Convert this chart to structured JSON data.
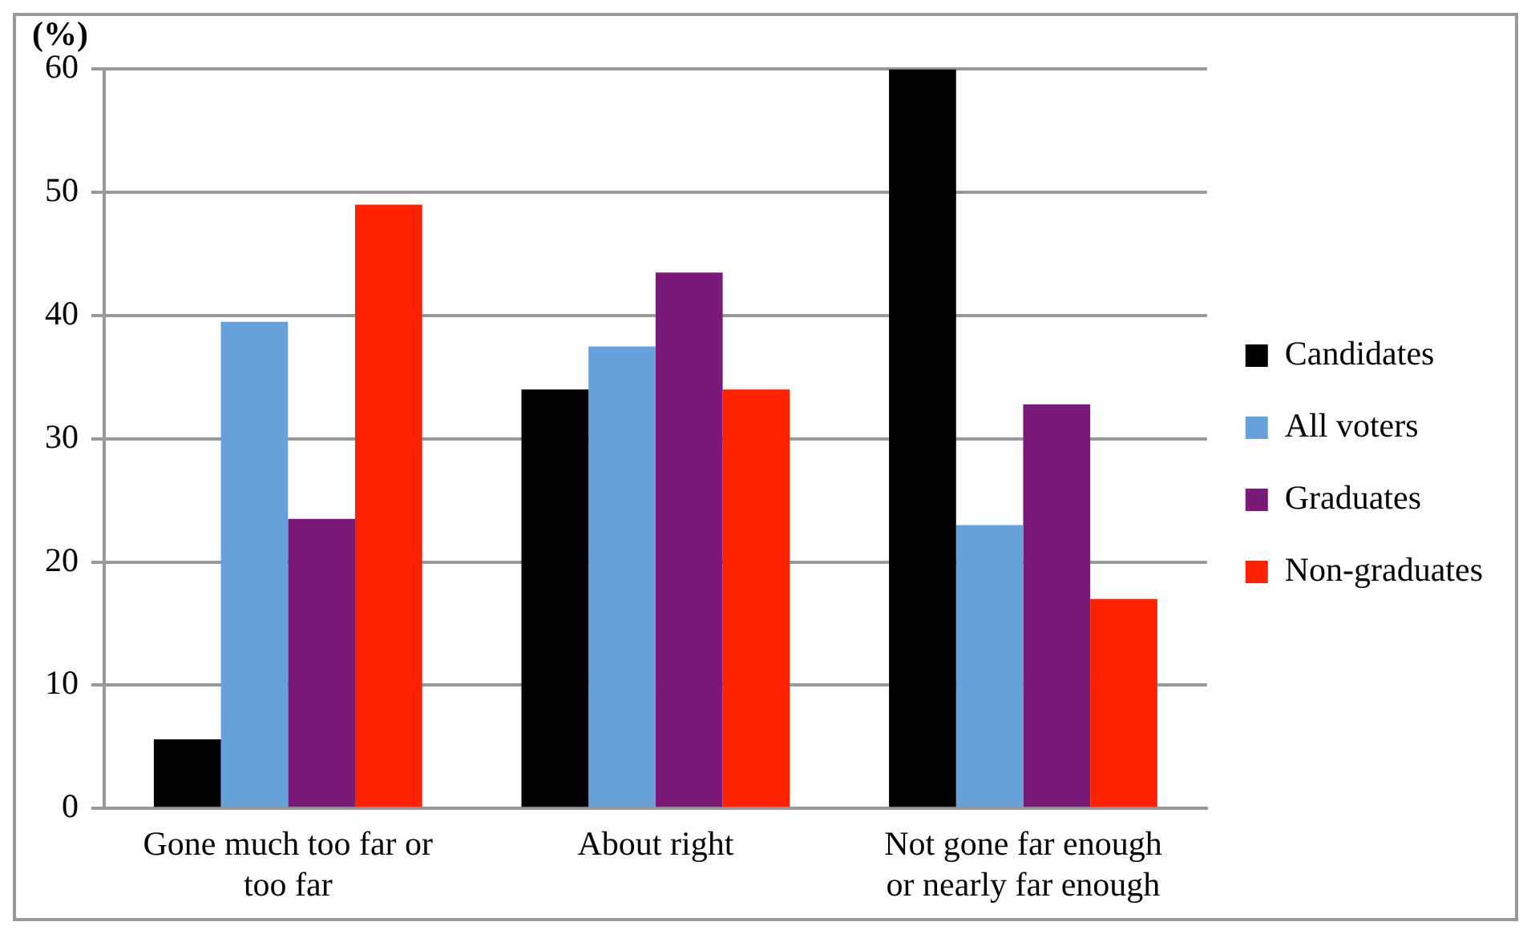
{
  "chart_data": {
    "type": "bar",
    "ylabel": "(%)",
    "categories": [
      "Gone much too far or too far",
      "About right",
      "Not gone far enough or nearly far enough"
    ],
    "series": [
      {
        "name": "Candidates",
        "color": "#000000",
        "values": [
          5.6,
          34,
          60
        ]
      },
      {
        "name": "All voters",
        "color": "#66a1dc",
        "values": [
          39.5,
          37.5,
          23
        ]
      },
      {
        "name": "Graduates",
        "color": "#7a1a78",
        "values": [
          23.5,
          43.5,
          32.8
        ]
      },
      {
        "name": "Non-graduates",
        "color": "#ff2200",
        "values": [
          49,
          34,
          17
        ]
      }
    ],
    "ylim": [
      0,
      60
    ],
    "yticks": [
      0,
      10,
      20,
      30,
      40,
      50,
      60
    ],
    "grid": "y",
    "legend": "right"
  }
}
